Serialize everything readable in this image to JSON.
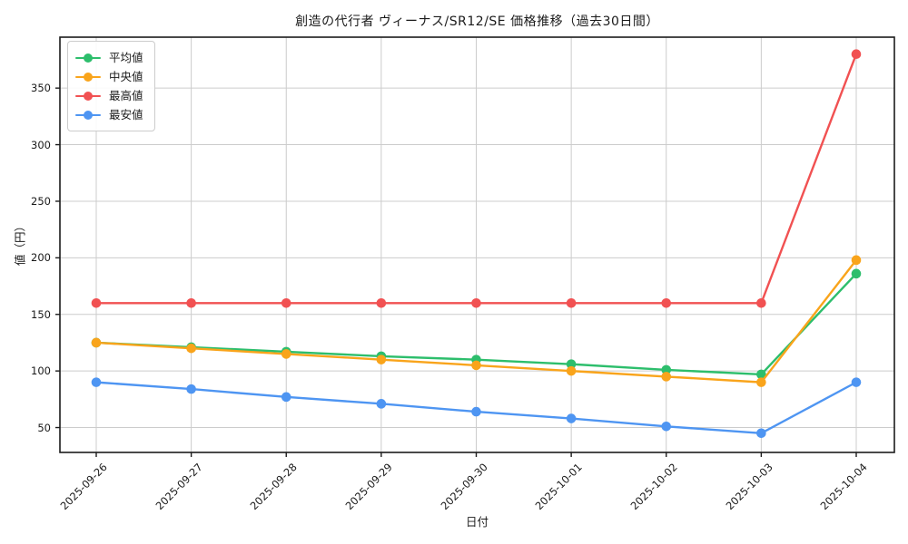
{
  "chart_data": {
    "type": "line",
    "title": "創造の代行者 ヴィーナス/SR12/SE 価格推移（過去30日間）",
    "xlabel": "日付",
    "ylabel": "値（円）",
    "categories": [
      "2025-09-26",
      "2025-09-27",
      "2025-09-28",
      "2025-09-29",
      "2025-09-30",
      "2025-10-01",
      "2025-10-02",
      "2025-10-03",
      "2025-10-04"
    ],
    "series": [
      {
        "name": "平均値",
        "color": "#2dbe6c",
        "values": [
          125,
          121,
          117,
          113,
          110,
          106,
          101,
          97,
          186
        ]
      },
      {
        "name": "中央値",
        "color": "#f9a41b",
        "values": [
          125,
          120,
          115,
          110,
          105,
          100,
          95,
          90,
          198
        ]
      },
      {
        "name": "最高値",
        "color": "#f15152",
        "values": [
          160,
          160,
          160,
          160,
          160,
          160,
          160,
          160,
          380
        ]
      },
      {
        "name": "最安値",
        "color": "#4e95f2",
        "values": [
          90,
          84,
          77,
          71,
          64,
          58,
          51,
          45,
          90
        ]
      }
    ],
    "yticks": [
      50,
      100,
      150,
      200,
      250,
      300,
      350
    ],
    "ylim": [
      28,
      395
    ],
    "grid": true,
    "legend_position": "upper left",
    "x_tick_rotation": 45,
    "marker": "circle"
  },
  "colors": {
    "grid": "#cccccc",
    "spine": "#1c1c1c",
    "tick": "#1c1c1c",
    "text": "#1a1a1a",
    "background": "#ffffff"
  }
}
